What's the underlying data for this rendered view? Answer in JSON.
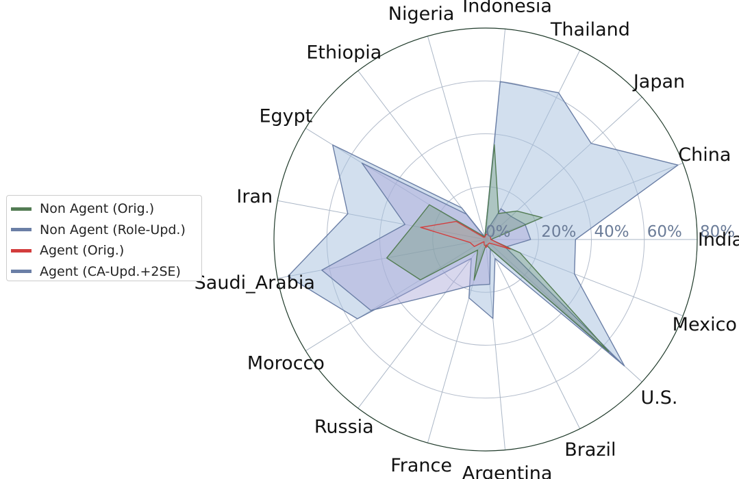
{
  "chart_data": {
    "type": "radar",
    "categories": [
      "India",
      "China",
      "Japan",
      "Thailand",
      "Indonesia",
      "Nigeria",
      "Ethiopia",
      "Egypt",
      "Iran",
      "Saudi_Arabia",
      "Morocco",
      "Russia",
      "France",
      "Argentina",
      "Brazil",
      "U.S.",
      "Mexico"
    ],
    "rticks": [
      0,
      20,
      40,
      60,
      80
    ],
    "rtick_labels": [
      "0%",
      "20%",
      "40%",
      "60%",
      "80%"
    ],
    "rlim": [
      0,
      80
    ],
    "grid": true,
    "legend_position": "left",
    "series": [
      {
        "name": "Non Agent (Orig.)",
        "color": "#537c54",
        "fill": "#5a8a5e",
        "fill_opacity": 0.3,
        "values": [
          2,
          23,
          16,
          11,
          36,
          1,
          2,
          25,
          28,
          38,
          29,
          5,
          16,
          2,
          4,
          63,
          14
        ]
      },
      {
        "name": "Non Agent (Role-Upd.)",
        "color": "#6b7fa6",
        "fill": "#a9a6d6",
        "fill_opacity": 0.45,
        "values": [
          17,
          16,
          13,
          13,
          3,
          1,
          12,
          55,
          31,
          63,
          51,
          25,
          18,
          17,
          4,
          70,
          8
        ]
      },
      {
        "name": "Agent (Orig.)",
        "color": "#d33d3d",
        "fill": "#e88080",
        "fill_opacity": 0.15,
        "values": [
          2,
          2,
          2,
          2,
          2,
          1,
          1,
          13,
          25,
          6,
          5,
          1,
          2,
          3,
          2,
          2,
          10
        ]
      },
      {
        "name": "Agent (CA-Upd.+2SE)",
        "color": "#6b7fa6",
        "fill": "#a6bfde",
        "fill_opacity": 0.5,
        "values": [
          34,
          78,
          54,
          62,
          60,
          1,
          15,
          68,
          53,
          76,
          57,
          9,
          23,
          30,
          8,
          71,
          36
        ]
      }
    ]
  }
}
